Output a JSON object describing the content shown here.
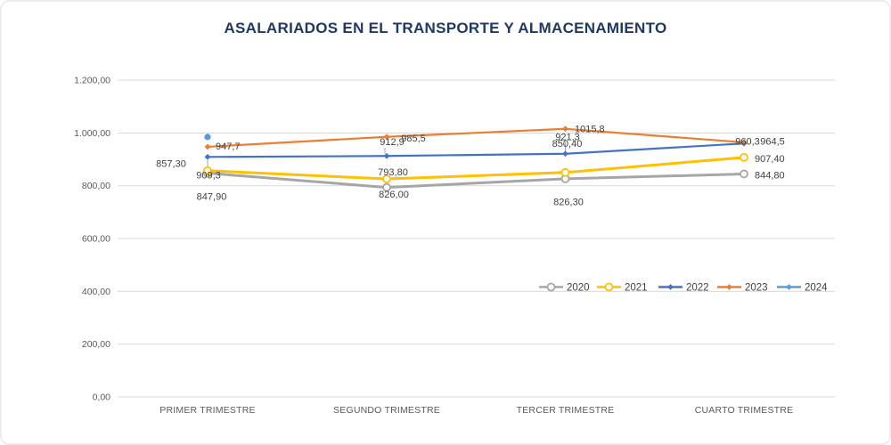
{
  "title": "ASALARIADOS EN EL TRANSPORTE Y ALMACENAMIENTO",
  "chart_data": {
    "type": "line",
    "title": "ASALARIADOS EN EL TRANSPORTE Y ALMACENAMIENTO",
    "categories": [
      "PRIMER TRIMESTRE",
      "SEGUNDO TRIMESTRE",
      "TERCER TRIMESTRE",
      "CUARTO TRIMESTRE"
    ],
    "series": [
      {
        "name": "2020",
        "color": "#a6a6a6",
        "marker": "open-circle",
        "line_width": 3,
        "values": [
          847.9,
          793.8,
          826.3,
          844.8
        ],
        "labels": [
          "847,90",
          "793,80",
          "826,30",
          "844,80"
        ]
      },
      {
        "name": "2021",
        "color": "#ffc000",
        "marker": "open-circle",
        "line_width": 3,
        "values": [
          857.3,
          826.0,
          850.4,
          907.4
        ],
        "labels": [
          "857,30",
          "826,00",
          "850,40",
          "907,40"
        ]
      },
      {
        "name": "2022",
        "color": "#4472c4",
        "marker": "diamond",
        "line_width": 2.2,
        "values": [
          909.3,
          912.9,
          921.3,
          960.3
        ],
        "labels": [
          "909,3",
          "912,9",
          "921,3",
          "960,3"
        ]
      },
      {
        "name": "2023",
        "color": "#ed7d31",
        "marker": "diamond",
        "line_width": 2.2,
        "values": [
          947.7,
          985.5,
          1015.8,
          964.5
        ],
        "labels": [
          "947,7",
          "985,5",
          "1015,8",
          "964,5"
        ]
      },
      {
        "name": "2024",
        "color": "#5b9bd5",
        "marker": "circle",
        "line_width": 2.2,
        "values": [
          985,
          null,
          null,
          null
        ],
        "labels": [
          "",
          "",
          "",
          ""
        ]
      }
    ],
    "y_axis": {
      "min": 0,
      "max": 1200,
      "step": 200,
      "tick_labels": [
        "0,00",
        "200,00",
        "400,00",
        "600,00",
        "800,00",
        "1.000,00",
        "1.200,00"
      ]
    },
    "grid": true,
    "legend_position": "inside-right-middle"
  },
  "colors": {
    "title": "#1f3864",
    "gridline": "#d9d9d9",
    "axis_text": "#595959",
    "data_label": "#404040"
  }
}
